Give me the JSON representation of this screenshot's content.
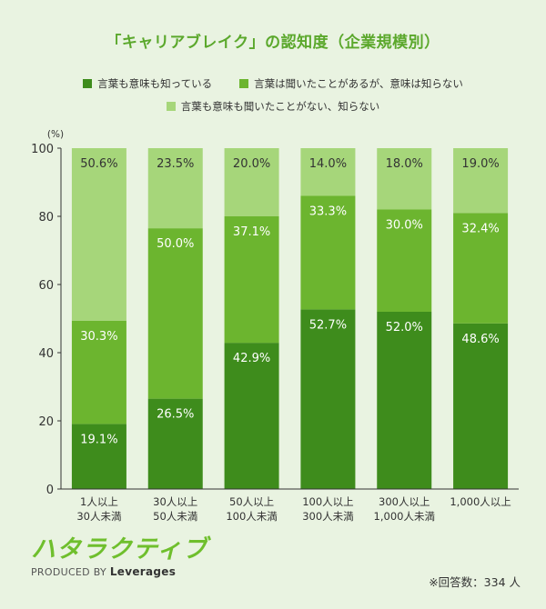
{
  "chart_data": {
    "type": "bar",
    "stacked": true,
    "title": "「キャリアブレイク」の認知度（企業規模別）",
    "ylabel": "(%)",
    "ylim": [
      0,
      100
    ],
    "yticks": [
      0,
      20,
      40,
      60,
      80,
      100
    ],
    "categories": [
      [
        "1人以上",
        "30人未満"
      ],
      [
        "30人以上",
        "50人未満"
      ],
      [
        "50人以上",
        "100人未満"
      ],
      [
        "100人以上",
        "300人未満"
      ],
      [
        "300人以上",
        "1,000人未満"
      ],
      [
        "1,000人以上",
        ""
      ]
    ],
    "series": [
      {
        "name": "言葉も意味も知っている",
        "color": "#3e8c1c",
        "values": [
          19.1,
          26.5,
          42.9,
          52.7,
          52.0,
          48.6
        ],
        "labels": [
          "19.1%",
          "26.5%",
          "42.9%",
          "52.7%",
          "52.0%",
          "48.6%"
        ]
      },
      {
        "name": "言葉は聞いたことがあるが、意味は知らない",
        "color": "#6cb52f",
        "values": [
          30.3,
          50.0,
          37.1,
          33.3,
          30.0,
          32.4
        ],
        "labels": [
          "30.3%",
          "50.0%",
          "37.1%",
          "33.3%",
          "30.0%",
          "32.4%"
        ]
      },
      {
        "name": "言葉も意味も聞いたことがない、知らない",
        "color": "#a6d67a",
        "values": [
          50.6,
          23.5,
          20.0,
          14.0,
          18.0,
          19.0
        ],
        "labels": [
          "50.6%",
          "23.5%",
          "20.0%",
          "14.0%",
          "18.0%",
          "19.0%"
        ]
      }
    ],
    "grid": false,
    "legend": "top"
  },
  "footnote": "※回答数：334 人",
  "logo": {
    "mark": "ハタラクティブ",
    "sub_prefix": "PRODUCED BY",
    "sub_brand": "Leverages"
  },
  "colors": {
    "title": "#5ba82c",
    "background": "#e9f3e1"
  }
}
